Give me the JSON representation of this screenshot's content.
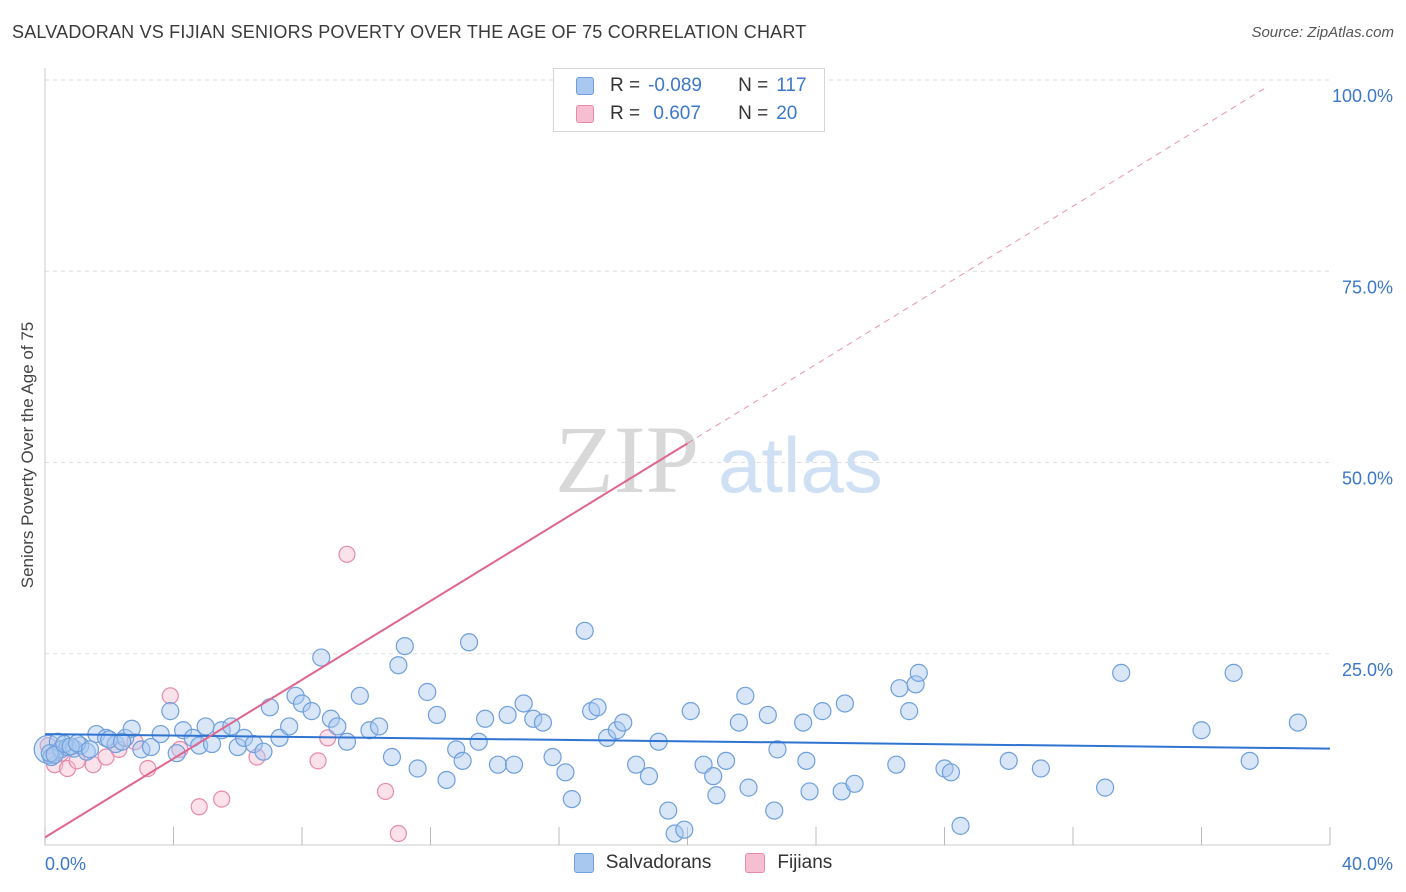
{
  "title": "SALVADORAN VS FIJIAN SENIORS POVERTY OVER THE AGE OF 75 CORRELATION CHART",
  "source": "Source: ZipAtlas.com",
  "watermark": {
    "zip": "ZIP",
    "atlas": "atlas"
  },
  "colors": {
    "salvadoran_fill": "#a9c8ef",
    "salvadoran_stroke": "#6f9fdc",
    "salvadoran_line": "#2f74d0",
    "fijian_fill": "#f6bfd1",
    "fijian_stroke": "#e88aa8",
    "fijian_line": "#e0668e",
    "tick_label": "#3b78c9",
    "grid": "#dddddd"
  },
  "legend": [
    {
      "r_label": "R =",
      "r_value": "-0.089",
      "n_label": "N =",
      "n_value": "117"
    },
    {
      "r_label": "R =",
      "r_value": " 0.607",
      "n_label": "N =",
      "n_value": "20"
    }
  ],
  "bottom_legend": [
    "Salvadorans",
    "Fijians"
  ],
  "chart_data": {
    "type": "scatter",
    "title": "SALVADORAN VS FIJIAN SENIORS POVERTY OVER THE AGE OF 75 CORRELATION CHART",
    "xlabel": "",
    "ylabel": "Seniors Poverty Over the Age of 75",
    "xlim": [
      0,
      40
    ],
    "ylim": [
      0,
      100
    ],
    "x_tick_labels": [
      "0.0%",
      "40.0%"
    ],
    "y_tick_labels": [
      "100.0%",
      "75.0%",
      "50.0%",
      "25.0%"
    ],
    "y_ticks": [
      100,
      75,
      50,
      25
    ],
    "grid": true,
    "legend_position": "top-center",
    "series": [
      {
        "name": "Salvadorans",
        "color": "#6f9fdc",
        "r": -0.089,
        "n": 117,
        "trend": {
          "x": [
            0,
            40
          ],
          "y": [
            14.5,
            12.6
          ]
        },
        "points": [
          [
            0.1,
            12.5
          ],
          [
            0.2,
            11.5
          ],
          [
            0.4,
            13.5
          ],
          [
            0.5,
            12.5
          ],
          [
            0.7,
            12.8
          ],
          [
            0.9,
            12.6
          ],
          [
            1.1,
            13.0
          ],
          [
            1.3,
            12.2
          ],
          [
            1.6,
            14.5
          ],
          [
            1.9,
            14.0
          ],
          [
            2.2,
            13.2
          ],
          [
            2.5,
            14.0
          ],
          [
            2.7,
            15.2
          ],
          [
            3.0,
            12.5
          ],
          [
            3.3,
            12.8
          ],
          [
            3.6,
            14.5
          ],
          [
            3.9,
            17.5
          ],
          [
            4.1,
            12.0
          ],
          [
            4.3,
            15.0
          ],
          [
            4.6,
            14.0
          ],
          [
            4.8,
            13.0
          ],
          [
            5.0,
            15.5
          ],
          [
            5.2,
            13.2
          ],
          [
            5.5,
            15.0
          ],
          [
            5.8,
            15.5
          ],
          [
            6.0,
            12.8
          ],
          [
            6.2,
            14.0
          ],
          [
            6.5,
            13.2
          ],
          [
            6.8,
            12.2
          ],
          [
            7.0,
            18.0
          ],
          [
            7.3,
            14.0
          ],
          [
            7.6,
            15.5
          ],
          [
            7.8,
            19.5
          ],
          [
            8.0,
            18.5
          ],
          [
            8.3,
            17.5
          ],
          [
            8.6,
            24.5
          ],
          [
            8.9,
            16.5
          ],
          [
            9.1,
            15.5
          ],
          [
            9.4,
            13.5
          ],
          [
            9.8,
            19.5
          ],
          [
            10.1,
            15.0
          ],
          [
            10.4,
            15.5
          ],
          [
            10.8,
            11.5
          ],
          [
            11.0,
            23.5
          ],
          [
            11.2,
            26.0
          ],
          [
            11.6,
            10.0
          ],
          [
            11.9,
            20.0
          ],
          [
            12.2,
            17.0
          ],
          [
            12.5,
            8.5
          ],
          [
            12.8,
            12.5
          ],
          [
            13.0,
            11.0
          ],
          [
            13.2,
            26.5
          ],
          [
            13.5,
            13.5
          ],
          [
            13.7,
            16.5
          ],
          [
            14.1,
            10.5
          ],
          [
            14.4,
            17.0
          ],
          [
            14.6,
            10.5
          ],
          [
            14.9,
            18.5
          ],
          [
            15.2,
            16.5
          ],
          [
            15.5,
            16.0
          ],
          [
            15.8,
            11.5
          ],
          [
            16.2,
            9.5
          ],
          [
            16.4,
            6.0
          ],
          [
            16.8,
            28.0
          ],
          [
            17.0,
            17.5
          ],
          [
            17.2,
            18.0
          ],
          [
            17.5,
            14.0
          ],
          [
            17.8,
            15.0
          ],
          [
            18.0,
            16.0
          ],
          [
            18.4,
            10.5
          ],
          [
            18.8,
            9.0
          ],
          [
            19.1,
            13.5
          ],
          [
            19.4,
            4.5
          ],
          [
            19.6,
            1.5
          ],
          [
            19.9,
            2.0
          ],
          [
            20.1,
            17.5
          ],
          [
            20.5,
            10.5
          ],
          [
            20.8,
            9.0
          ],
          [
            20.9,
            6.5
          ],
          [
            21.2,
            11.0
          ],
          [
            21.6,
            16.0
          ],
          [
            21.8,
            19.5
          ],
          [
            21.9,
            7.5
          ],
          [
            22.5,
            17.0
          ],
          [
            22.7,
            4.5
          ],
          [
            22.8,
            12.5
          ],
          [
            23.6,
            16.0
          ],
          [
            23.7,
            11.0
          ],
          [
            23.8,
            7.0
          ],
          [
            24.2,
            17.5
          ],
          [
            24.8,
            7.0
          ],
          [
            24.9,
            18.5
          ],
          [
            25.2,
            8.0
          ],
          [
            26.5,
            10.5
          ],
          [
            26.6,
            20.5
          ],
          [
            26.9,
            17.5
          ],
          [
            27.1,
            21.0
          ],
          [
            27.2,
            22.5
          ],
          [
            28.0,
            10.0
          ],
          [
            28.2,
            9.5
          ],
          [
            28.5,
            2.5
          ],
          [
            30.0,
            11.0
          ],
          [
            31.0,
            10.0
          ],
          [
            33.0,
            7.5
          ],
          [
            33.5,
            22.5
          ],
          [
            36.0,
            15.0
          ],
          [
            37.0,
            22.5
          ],
          [
            37.5,
            11.0
          ],
          [
            39.0,
            16.0
          ],
          [
            0.15,
            12.0
          ],
          [
            0.3,
            11.8
          ],
          [
            0.6,
            13.2
          ],
          [
            0.8,
            12.9
          ],
          [
            1.0,
            13.3
          ],
          [
            1.4,
            12.5
          ],
          [
            2.0,
            13.8
          ],
          [
            2.4,
            13.5
          ]
        ]
      },
      {
        "name": "Fijians",
        "color": "#e88aa8",
        "r": 0.607,
        "n": 20,
        "trend": {
          "x": [
            0,
            20
          ],
          "y": [
            1.0,
            52.5
          ]
        },
        "trend_extension": {
          "x": [
            20,
            38
          ],
          "y": [
            52.5,
            99.0
          ]
        },
        "points": [
          [
            0.1,
            13.0
          ],
          [
            0.3,
            10.5
          ],
          [
            0.5,
            12.0
          ],
          [
            0.7,
            10.0
          ],
          [
            1.0,
            11.0
          ],
          [
            1.5,
            10.5
          ],
          [
            1.9,
            11.5
          ],
          [
            2.3,
            12.5
          ],
          [
            2.8,
            13.5
          ],
          [
            3.2,
            10.0
          ],
          [
            3.9,
            19.5
          ],
          [
            4.2,
            12.5
          ],
          [
            4.8,
            5.0
          ],
          [
            5.5,
            6.0
          ],
          [
            6.6,
            11.5
          ],
          [
            8.5,
            11.0
          ],
          [
            8.8,
            14.0
          ],
          [
            9.4,
            38.0
          ],
          [
            10.6,
            7.0
          ],
          [
            11.0,
            1.5
          ]
        ]
      }
    ]
  }
}
